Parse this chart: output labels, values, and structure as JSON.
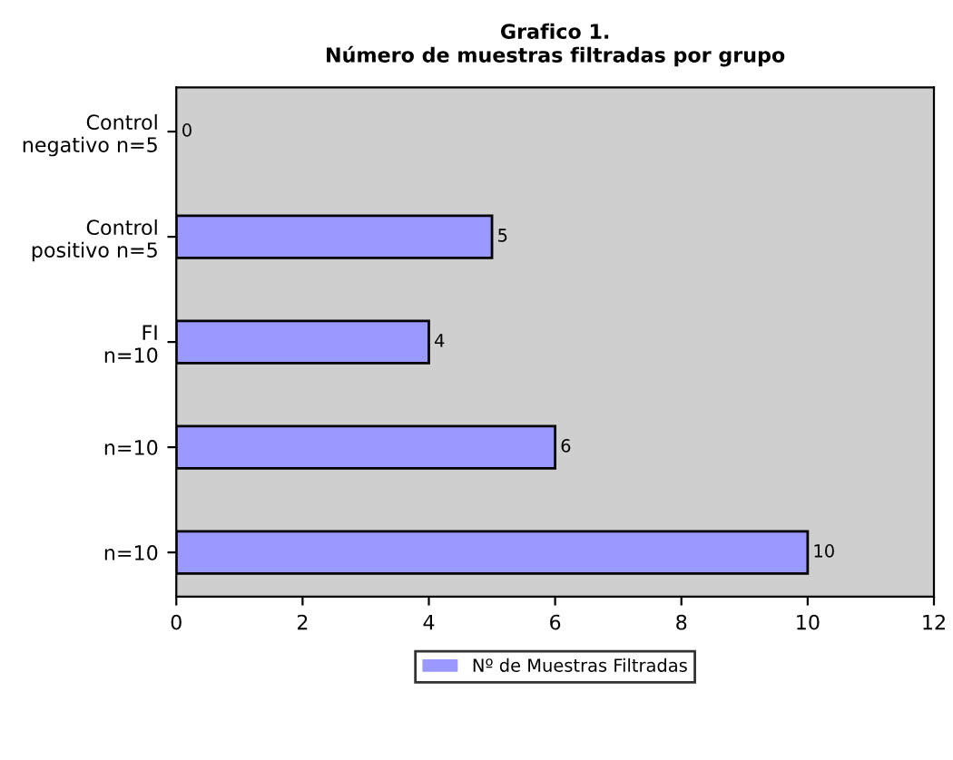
{
  "chart_data": {
    "type": "bar",
    "orientation": "horizontal",
    "title": "Grafico 1.\nNúmero de muestras filtradas por grupo",
    "categories": [
      "Control\nnegativo n=5",
      "Control\npositivo n=5",
      "FI\nn=10",
      "n=10",
      "n=10"
    ],
    "series": [
      {
        "name": "Nº de Muestras Filtradas",
        "color": "#9999ff",
        "values": [
          0,
          5,
          4,
          6,
          10
        ]
      }
    ],
    "xlim": [
      0,
      12
    ],
    "xticks": [
      0,
      2,
      4,
      6,
      8,
      10,
      12
    ],
    "data_labels": true,
    "legend": "bottom",
    "grid": false
  }
}
